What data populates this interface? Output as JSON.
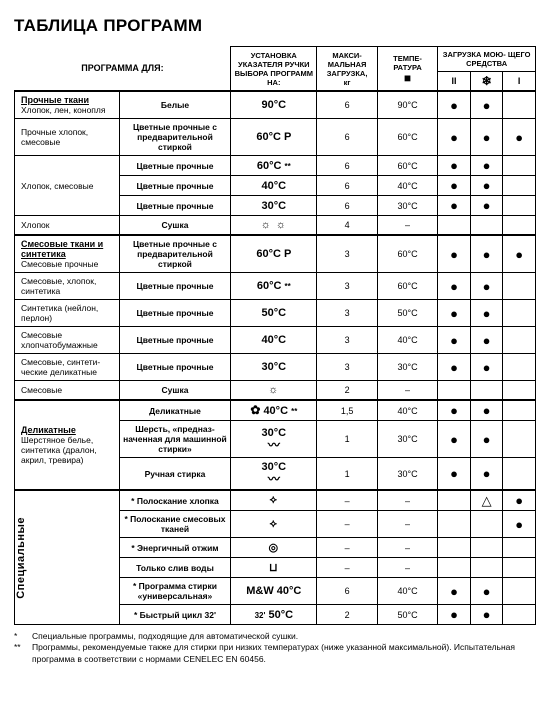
{
  "title": "ТАБЛИЦА ПРОГРАММ",
  "head": {
    "program_for": "ПРОГРАММА ДЛЯ:",
    "dial": "УСТАНОВКА УКАЗАТЕЛЯ РУЧКИ ВЫБОРА ПРОГРАММ НА:",
    "maxload": "МАКСИ-\nМАЛЬНАЯ ЗАГРУЗКА,",
    "maxload_unit": "кг",
    "temp": "ТЕМПЕ-\nРАТУРА",
    "temp_icon": "■",
    "deterg": "ЗАГРУЗКА МОЮ-\nЩЕГО СРЕДСТВА",
    "det_cols": {
      "II": "II",
      "snow": "❄",
      "I": "I"
    },
    "triangle": "△"
  },
  "groups": [
    {
      "rows": [
        {
          "pc_html": "<b class='u'>Прочные ткани</b><br><span class='thin'>Хлопок, лен, конопля</span>",
          "sub": "Белые",
          "dial": "<b>90°C</b>",
          "load": "6",
          "temp": "90°C",
          "II": "●",
          "S": "●",
          "I": ""
        },
        {
          "pc_html": "<span class='thin'>Прочные хлопок, смесовые</span>",
          "sub": "Цветные прочные с предварительной стиркой",
          "dial": "<b>60°C P</b>",
          "load": "6",
          "temp": "60°C",
          "II": "●",
          "S": "●",
          "I": "●"
        },
        {
          "pc_html": "",
          "rowspan_with_next": true,
          "sub": "Цветные прочные",
          "dial": "<b>60°C</b> <span class='small'>**</span>",
          "load": "6",
          "temp": "60°C",
          "II": "●",
          "S": "●",
          "I": ""
        },
        {
          "pc_html": "<span class='thin'>Хлопок, смесовые</span>",
          "span_from_prev": true,
          "sub": "Цветные прочные",
          "dial": "<b>40°C</b>",
          "load": "6",
          "temp": "40°C",
          "II": "●",
          "S": "●",
          "I": ""
        },
        {
          "pc_html": "",
          "span_from_prev": true,
          "sub": "Цветные прочные",
          "dial": "<b>30°C</b>",
          "load": "6",
          "temp": "30°C",
          "II": "●",
          "S": "●",
          "I": ""
        },
        {
          "pc_html": "<span class='thin'>Хлопок</span>",
          "sub": "Сушка",
          "dial_icon": "☼ ☼",
          "load": "4",
          "temp": "–",
          "II": "",
          "S": "",
          "I": ""
        }
      ]
    },
    {
      "rows": [
        {
          "pc_html": "<b class='u'>Смесовые ткани и синтетика</b><br><span class='thin'>Смесовые прочные</span>",
          "sub": "Цветные прочные с предварительной стиркой",
          "dial": "<b>60°C P</b>",
          "load": "3",
          "temp": "60°C",
          "II": "●",
          "S": "●",
          "I": "●"
        },
        {
          "pc_html": "<span class='thin'>Смесовые, хлопок, синтетика</span>",
          "sub": "Цветные прочные",
          "dial": "<b>60°C</b> <span class='small'>**</span>",
          "load": "3",
          "temp": "60°C",
          "II": "●",
          "S": "●",
          "I": ""
        },
        {
          "pc_html": "<span class='thin'>Синтетика (нейлон, перлон)</span>",
          "sub": "Цветные прочные",
          "dial": "<b>50°C</b>",
          "load": "3",
          "temp": "50°C",
          "II": "●",
          "S": "●",
          "I": ""
        },
        {
          "pc_html": "<span class='thin'>Смесовые хлопчатобумажные</span>",
          "sub": "Цветные прочные",
          "dial": "<b>40°C</b>",
          "load": "3",
          "temp": "40°C",
          "II": "●",
          "S": "●",
          "I": ""
        },
        {
          "pc_html": "<span class='thin'>Смесовые, синтети-\nческие деликатные</span>",
          "sub": "Цветные прочные",
          "dial": "<b>30°C</b>",
          "load": "3",
          "temp": "30°C",
          "II": "●",
          "S": "●",
          "I": ""
        },
        {
          "pc_html": "<span class='thin'>Смесовые</span>",
          "sub": "Сушка",
          "dial_icon": "☼",
          "load": "2",
          "temp": "–",
          "II": "",
          "S": "",
          "I": ""
        }
      ]
    },
    {
      "rows": [
        {
          "pc_html": "",
          "rowspan_with_next": true,
          "sub": "Деликатные",
          "dial": "<span class='icon'>✿</span> <b>40°C</b> <span class='small'>**</span>",
          "load": "1,5",
          "temp": "40°C",
          "II": "●",
          "S": "●",
          "I": ""
        },
        {
          "pc_html": "<b class='u'>Деликатные</b><br><span class='thin'>Шерстяное белье, синтетика (дралон, акрил, тревира)</span>",
          "span_from_prev": true,
          "sub": "Шерсть, «предназ-\nначенная для машинной стирки»",
          "dial": "<b>30°C</b><br><span class='icon'>〰</span>",
          "load": "1",
          "temp": "30°C",
          "II": "●",
          "S": "●",
          "I": ""
        },
        {
          "pc_html": "",
          "span_from_prev": true,
          "sub": "Ручная стирка",
          "dial": "<b>30°C</b><br><span class='icon'>〰</span>",
          "load": "1",
          "temp": "30°C",
          "II": "●",
          "S": "●",
          "I": ""
        }
      ]
    },
    {
      "vert_label": "Специальные",
      "rows": [
        {
          "sub": "* Полоскание хлопка",
          "dial_icon": "⟡",
          "load": "–",
          "temp": "–",
          "II": "",
          "S": "△",
          "I": "●"
        },
        {
          "sub": "* Полоскание смесовых тканей",
          "dial_icon": "⟡",
          "load": "–",
          "temp": "–",
          "II": "",
          "S": "",
          "I": "●"
        },
        {
          "sub": "* Энергичный отжим",
          "dial_icon": "◎",
          "load": "–",
          "temp": "–",
          "II": "",
          "S": "",
          "I": ""
        },
        {
          "sub": "Только слив воды",
          "dial_icon": "⊔",
          "load": "–",
          "temp": "–",
          "II": "",
          "S": "",
          "I": ""
        },
        {
          "sub": "* Программа стирки «универсальная»",
          "dial": "<b>M&W 40°C</b>",
          "load": "6",
          "temp": "40°C",
          "II": "●",
          "S": "●",
          "I": ""
        },
        {
          "sub": "* Быстрый цикл 32'",
          "dial": "<span class='small'>32'</span> <b>50°C</b>",
          "load": "2",
          "temp": "50°C",
          "II": "●",
          "S": "●",
          "I": ""
        }
      ]
    }
  ],
  "footnotes": {
    "star1": "Специальные программы, подходящие для автоматической сушки.",
    "star2": "Программы, рекомендуемые также для стирки при низких температурах (ниже указанной максимальной). Испытательная программа в соответствии с нормами CENELEC EN 60456."
  }
}
